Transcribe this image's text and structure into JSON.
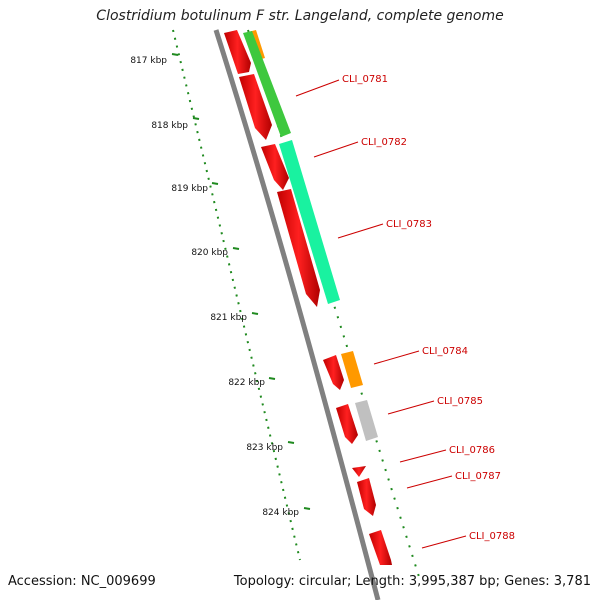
{
  "title": "Clostridium botulinum F str. Langeland, complete genome",
  "ticks": [
    "817 kbp",
    "818 kbp",
    "819 kbp",
    "820 kbp",
    "821 kbp",
    "822 kbp",
    "823 kbp",
    "824 kbp"
  ],
  "genes": [
    "CLI_0781",
    "CLI_0782",
    "CLI_0783",
    "CLI_0784",
    "CLI_0785",
    "CLI_0786",
    "CLI_0787",
    "CLI_0788"
  ],
  "footer": {
    "accession": "Accession: NC_009699",
    "summary": "Topology: circular; Length: 3,995,387 bp; Genes: 3,781"
  },
  "colors": {
    "forward_cds": "#ff0000",
    "backbone": "#808080",
    "tick": "#1f8a1f",
    "label": "#cc0000",
    "green": "#3ec83e",
    "teal": "#19f2a0",
    "orange": "#ff9900",
    "gray": "#c0c0c0"
  }
}
